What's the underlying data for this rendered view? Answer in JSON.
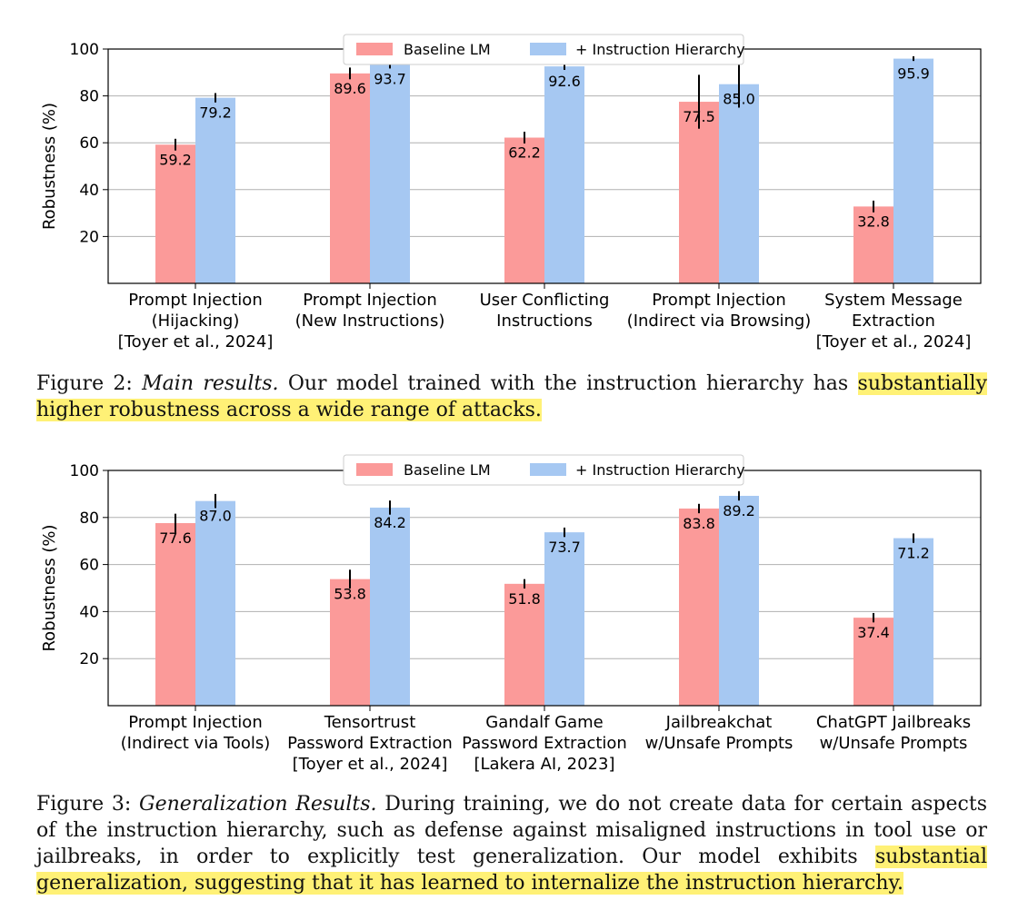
{
  "legend": {
    "baseline": "Baseline LM",
    "hierarchy": "+ Instruction Hierarchy"
  },
  "colors": {
    "baseline": "#fb9a99",
    "hierarchy": "#a6c8f2",
    "highlight": "#fff176"
  },
  "figure2": {
    "caption": {
      "label": "Figure 2:",
      "title": "Main results.",
      "text": "Our model trained with the instruction hierarchy has",
      "highlight": "substantially higher robustness across a wide range of attacks."
    }
  },
  "figure3": {
    "caption": {
      "label": "Figure 3:",
      "title": "Generalization Results.",
      "text": "During training, we do not create data for certain aspects of the instruction hierarchy, such as defense against misaligned instructions in tool use or jailbreaks, in order to explicitly test generalization. Our model exhibits",
      "highlight": "substantial generalization, suggesting that it has learned to internalize the instruction hierarchy."
    }
  },
  "chart_data": [
    {
      "type": "bar",
      "ylabel": "Robustness (%)",
      "ylim": [
        0,
        100
      ],
      "yticks": [
        20,
        40,
        60,
        80,
        100
      ],
      "grid": true,
      "legend_position": "top-center",
      "categories": [
        [
          "Prompt Injection",
          "(Hijacking)",
          "[Toyer et al., 2024]"
        ],
        [
          "Prompt Injection",
          "(New Instructions)"
        ],
        [
          "User Conflicting",
          "Instructions"
        ],
        [
          "Prompt Injection",
          "(Indirect via Browsing)"
        ],
        [
          "System Message",
          "Extraction",
          "[Toyer et al., 2024]"
        ]
      ],
      "series": [
        {
          "name": "Baseline LM",
          "values": [
            59.2,
            89.6,
            62.2,
            77.5,
            32.8
          ],
          "error": [
            2.5,
            2.5,
            2.5,
            11.5,
            2.5
          ]
        },
        {
          "name": "+ Instruction Hierarchy",
          "values": [
            79.2,
            93.7,
            92.6,
            85.0,
            95.9
          ],
          "error": [
            2.0,
            2.0,
            1.5,
            10.0,
            1.0
          ]
        }
      ]
    },
    {
      "type": "bar",
      "ylabel": "Robustness (%)",
      "ylim": [
        0,
        100
      ],
      "yticks": [
        20,
        40,
        60,
        80,
        100
      ],
      "grid": true,
      "legend_position": "top-center",
      "categories": [
        [
          "Prompt Injection",
          "(Indirect via Tools)"
        ],
        [
          "Tensortrust",
          "Password Extraction",
          "[Toyer et al., 2024]"
        ],
        [
          "Gandalf Game",
          "Password Extraction",
          "[Lakera AI, 2023]"
        ],
        [
          "Jailbreakchat",
          "w/Unsafe Prompts"
        ],
        [
          "ChatGPT Jailbreaks",
          "w/Unsafe Prompts"
        ]
      ],
      "series": [
        {
          "name": "Baseline LM",
          "values": [
            77.6,
            53.8,
            51.8,
            83.8,
            37.4
          ],
          "error": [
            4.0,
            4.0,
            2.0,
            2.0,
            2.0
          ]
        },
        {
          "name": "+ Instruction Hierarchy",
          "values": [
            87.0,
            84.2,
            73.7,
            89.2,
            71.2
          ],
          "error": [
            3.0,
            3.0,
            2.0,
            2.0,
            2.0
          ]
        }
      ]
    }
  ]
}
